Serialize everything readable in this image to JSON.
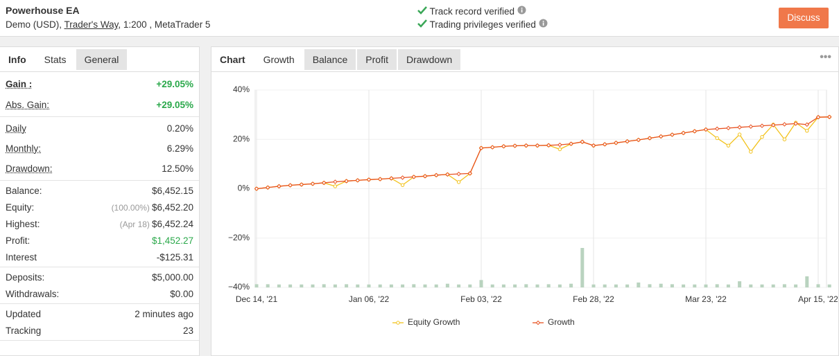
{
  "header": {
    "title": "Powerhouse EA",
    "account": "Demo (USD),",
    "broker": "Trader's Way",
    "details": ", 1:200 , MetaTrader 5",
    "verifications": [
      "Track record verified",
      "Trading privileges verified"
    ],
    "button": "Discuss"
  },
  "left_tabs": [
    "Info",
    "Stats",
    "General"
  ],
  "stats": [
    [
      {
        "label": "Gain :",
        "value": "+29.05%",
        "color": "#2aa84a"
      },
      {
        "label": "Abs. Gain:",
        "value": "+29.05%",
        "color": "#2aa84a"
      }
    ],
    [
      {
        "label": "Daily",
        "value": "0.20%"
      },
      {
        "label": "Monthly:",
        "value": "6.29%"
      },
      {
        "label": "Drawdown:",
        "value": "12.50%"
      }
    ],
    [
      {
        "label": "Balance:",
        "value": "$6,452.15"
      },
      {
        "label": "Equity:",
        "note": "(100.00%)",
        "value": "$6,452.20"
      },
      {
        "label": "Highest:",
        "note": "(Apr 18)",
        "value": "$6,452.24"
      },
      {
        "label": "Profit:",
        "value": "$1,452.27",
        "color": "#2aa84a"
      },
      {
        "label": "Interest",
        "value": "-$125.31"
      }
    ],
    [
      {
        "label": "Deposits:",
        "value": "$5,000.00"
      },
      {
        "label": "Withdrawals:",
        "value": "$0.00"
      }
    ],
    [
      {
        "label": "Updated",
        "value": "2 minutes ago"
      },
      {
        "label": "Tracking",
        "value": "23"
      }
    ]
  ],
  "chart_tabs": [
    "Chart",
    "Growth",
    "Balance",
    "Profit",
    "Drawdown"
  ],
  "chart_data": {
    "type": "line",
    "categories": [
      "Dec 14, '21",
      null,
      null,
      null,
      null,
      null,
      null,
      null,
      null,
      null,
      "Jan 06, '22",
      null,
      null,
      null,
      null,
      null,
      null,
      null,
      null,
      null,
      "Feb 03, '22",
      null,
      null,
      null,
      null,
      null,
      null,
      null,
      null,
      null,
      "Feb 28, '22",
      null,
      null,
      null,
      null,
      null,
      null,
      null,
      null,
      null,
      "Mar 23, '22",
      null,
      null,
      null,
      null,
      null,
      null,
      null,
      null,
      null,
      "Apr 15, '22",
      null
    ],
    "ylim": [
      -40,
      40
    ],
    "yticks": [
      {
        "value": -40,
        "label": "−40%"
      },
      {
        "value": -20,
        "label": "−20%"
      },
      {
        "value": 0,
        "label": "0%"
      },
      {
        "value": 20,
        "label": "20%"
      },
      {
        "value": 40,
        "label": "40%"
      }
    ],
    "grid": true,
    "series": [
      {
        "name": "Equity Growth",
        "color": "#f2c21b",
        "values": [
          0,
          0.5,
          1.0,
          1.4,
          1.7,
          2.0,
          2.4,
          1.0,
          3.1,
          3.4,
          3.7,
          3.9,
          4.2,
          1.5,
          4.8,
          5.1,
          5.5,
          5.8,
          2.7,
          6.2,
          16.5,
          16.8,
          17.2,
          17.4,
          17.5,
          17.5,
          17.6,
          16.0,
          18.2,
          19.0,
          17.5,
          18.0,
          18.6,
          19.2,
          19.8,
          20.5,
          21.2,
          21.9,
          22.6,
          23.3,
          24.0,
          20.5,
          17.5,
          22.0,
          15.0,
          21.0,
          26.0,
          20.0,
          26.8,
          23.5,
          29.0,
          29.1
        ]
      },
      {
        "name": "Growth",
        "color": "#e8501f",
        "values": [
          0,
          0.5,
          1.0,
          1.4,
          1.7,
          2.0,
          2.4,
          2.8,
          3.1,
          3.4,
          3.7,
          3.9,
          4.2,
          4.5,
          4.8,
          5.1,
          5.5,
          5.8,
          6.0,
          6.2,
          16.5,
          16.8,
          17.2,
          17.4,
          17.5,
          17.5,
          17.6,
          17.8,
          18.2,
          19.0,
          17.5,
          18.0,
          18.6,
          19.2,
          19.8,
          20.5,
          21.2,
          21.9,
          22.6,
          23.3,
          24.0,
          24.3,
          24.6,
          24.9,
          25.2,
          25.5,
          25.8,
          26.1,
          26.4,
          26.0,
          29.0,
          29.1
        ]
      }
    ],
    "bars": {
      "color": "#b9d3bf",
      "values": [
        1.3,
        1.3,
        1.2,
        1.2,
        1.2,
        1.2,
        1.3,
        1.2,
        1.3,
        1.2,
        1.2,
        1.2,
        1.2,
        1.2,
        1.3,
        1.2,
        1.2,
        1.5,
        1.2,
        1.2,
        3.0,
        1.2,
        1.2,
        1.2,
        1.3,
        1.2,
        1.3,
        1.2,
        1.5,
        16.0,
        1.2,
        1.2,
        1.2,
        1.2,
        2.0,
        1.3,
        1.5,
        1.3,
        1.2,
        1.2,
        1.2,
        1.3,
        1.2,
        2.5,
        1.2,
        1.2,
        1.2,
        1.3,
        1.2,
        4.5,
        1.3,
        1.2
      ]
    }
  }
}
